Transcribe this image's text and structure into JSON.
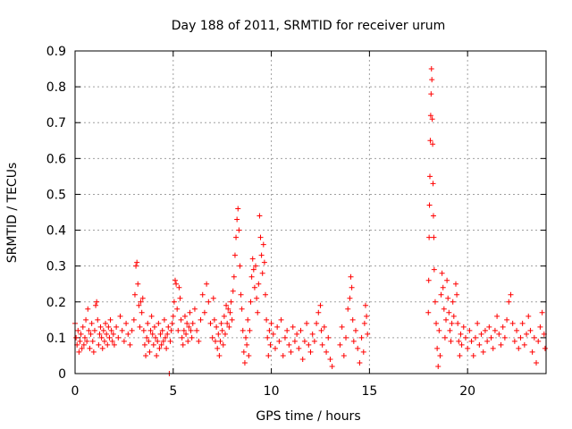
{
  "chart_data": {
    "type": "scatter",
    "title": "Day 188 of 2011, SRMTID for receiver urum",
    "xlabel": "GPS time / hours",
    "ylabel": "SRMTID / TECUs",
    "xlim": [
      0,
      24
    ],
    "ylim": [
      0,
      0.9
    ],
    "xticks": [
      0,
      5,
      10,
      15,
      20
    ],
    "xtick_labels": [
      "0",
      "5",
      "10",
      "15",
      "20"
    ],
    "yticks": [
      0,
      0.1,
      0.2,
      0.3,
      0.4,
      0.5,
      0.6,
      0.7,
      0.8,
      0.9
    ],
    "ytick_labels": [
      "0",
      "0.1",
      "0.2",
      "0.3",
      "0.4",
      "0.5",
      "0.6",
      "0.7",
      "0.8",
      "0.9"
    ],
    "grid": true,
    "marker": "+",
    "color": "#ff0000",
    "series": [
      {
        "name": "SRMTID",
        "points": [
          [
            0.0,
            0.14
          ],
          [
            0.05,
            0.1
          ],
          [
            0.1,
            0.08
          ],
          [
            0.15,
            0.12
          ],
          [
            0.2,
            0.06
          ],
          [
            0.25,
            0.09
          ],
          [
            0.3,
            0.11
          ],
          [
            0.35,
            0.07
          ],
          [
            0.4,
            0.13
          ],
          [
            0.45,
            0.08
          ],
          [
            0.5,
            0.1
          ],
          [
            0.55,
            0.15
          ],
          [
            0.6,
            0.09
          ],
          [
            0.65,
            0.18
          ],
          [
            0.7,
            0.12
          ],
          [
            0.75,
            0.07
          ],
          [
            0.8,
            0.11
          ],
          [
            0.85,
            0.14
          ],
          [
            0.9,
            0.09
          ],
          [
            0.95,
            0.06
          ],
          [
            1.0,
            0.12
          ],
          [
            1.05,
            0.19
          ],
          [
            1.1,
            0.2
          ],
          [
            1.15,
            0.15
          ],
          [
            1.2,
            0.08
          ],
          [
            1.25,
            0.11
          ],
          [
            1.3,
            0.13
          ],
          [
            1.35,
            0.1
          ],
          [
            1.4,
            0.07
          ],
          [
            1.45,
            0.12
          ],
          [
            1.5,
            0.09
          ],
          [
            1.55,
            0.14
          ],
          [
            1.6,
            0.11
          ],
          [
            1.65,
            0.08
          ],
          [
            1.7,
            0.13
          ],
          [
            1.75,
            0.1
          ],
          [
            1.8,
            0.15
          ],
          [
            1.85,
            0.12
          ],
          [
            1.9,
            0.09
          ],
          [
            1.95,
            0.11
          ],
          [
            2.0,
            0.08
          ],
          [
            2.1,
            0.13
          ],
          [
            2.2,
            0.1
          ],
          [
            2.3,
            0.16
          ],
          [
            2.4,
            0.12
          ],
          [
            2.5,
            0.09
          ],
          [
            2.6,
            0.14
          ],
          [
            2.7,
            0.11
          ],
          [
            2.8,
            0.08
          ],
          [
            2.9,
            0.12
          ],
          [
            3.0,
            0.15
          ],
          [
            3.05,
            0.22
          ],
          [
            3.1,
            0.3
          ],
          [
            3.15,
            0.31
          ],
          [
            3.2,
            0.25
          ],
          [
            3.25,
            0.19
          ],
          [
            3.3,
            0.13
          ],
          [
            3.35,
            0.2
          ],
          [
            3.4,
            0.17
          ],
          [
            3.45,
            0.21
          ],
          [
            3.5,
            0.12
          ],
          [
            3.55,
            0.08
          ],
          [
            3.6,
            0.05
          ],
          [
            3.65,
            0.1
          ],
          [
            3.7,
            0.14
          ],
          [
            3.75,
            0.09
          ],
          [
            3.8,
            0.06
          ],
          [
            3.85,
            0.12
          ],
          [
            3.9,
            0.16
          ],
          [
            3.95,
            0.11
          ],
          [
            4.0,
            0.08
          ],
          [
            4.05,
            0.13
          ],
          [
            4.1,
            0.1
          ],
          [
            4.15,
            0.05
          ],
          [
            4.2,
            0.09
          ],
          [
            4.25,
            0.14
          ],
          [
            4.3,
            0.07
          ],
          [
            4.35,
            0.11
          ],
          [
            4.4,
            0.08
          ],
          [
            4.45,
            0.12
          ],
          [
            4.5,
            0.09
          ],
          [
            4.55,
            0.15
          ],
          [
            4.6,
            0.1
          ],
          [
            4.65,
            0.07
          ],
          [
            4.7,
            0.11
          ],
          [
            4.75,
            0.13
          ],
          [
            4.8,
            0.0
          ],
          [
            4.85,
            0.09
          ],
          [
            4.9,
            0.12
          ],
          [
            4.95,
            0.14
          ],
          [
            5.0,
            0.16
          ],
          [
            5.05,
            0.2
          ],
          [
            5.1,
            0.26
          ],
          [
            5.15,
            0.25
          ],
          [
            5.2,
            0.18
          ],
          [
            5.25,
            0.12
          ],
          [
            5.3,
            0.24
          ],
          [
            5.35,
            0.21
          ],
          [
            5.4,
            0.15
          ],
          [
            5.45,
            0.1
          ],
          [
            5.5,
            0.08
          ],
          [
            5.55,
            0.12
          ],
          [
            5.6,
            0.16
          ],
          [
            5.65,
            0.11
          ],
          [
            5.7,
            0.14
          ],
          [
            5.75,
            0.09
          ],
          [
            5.8,
            0.13
          ],
          [
            5.85,
            0.17
          ],
          [
            5.9,
            0.12
          ],
          [
            5.95,
            0.1
          ],
          [
            6.0,
            0.14
          ],
          [
            6.1,
            0.18
          ],
          [
            6.2,
            0.12
          ],
          [
            6.3,
            0.09
          ],
          [
            6.4,
            0.15
          ],
          [
            6.5,
            0.22
          ],
          [
            6.6,
            0.17
          ],
          [
            6.7,
            0.25
          ],
          [
            6.8,
            0.2
          ],
          [
            6.9,
            0.14
          ],
          [
            7.0,
            0.1
          ],
          [
            7.05,
            0.21
          ],
          [
            7.1,
            0.15
          ],
          [
            7.15,
            0.09
          ],
          [
            7.2,
            0.13
          ],
          [
            7.25,
            0.07
          ],
          [
            7.3,
            0.11
          ],
          [
            7.35,
            0.05
          ],
          [
            7.4,
            0.09
          ],
          [
            7.45,
            0.14
          ],
          [
            7.5,
            0.12
          ],
          [
            7.55,
            0.08
          ],
          [
            7.6,
            0.16
          ],
          [
            7.65,
            0.11
          ],
          [
            7.7,
            0.19
          ],
          [
            7.75,
            0.14
          ],
          [
            7.8,
            0.18
          ],
          [
            7.85,
            0.13
          ],
          [
            7.9,
            0.17
          ],
          [
            7.95,
            0.2
          ],
          [
            8.0,
            0.15
          ],
          [
            8.05,
            0.23
          ],
          [
            8.1,
            0.27
          ],
          [
            8.15,
            0.33
          ],
          [
            8.2,
            0.38
          ],
          [
            8.25,
            0.43
          ],
          [
            8.3,
            0.46
          ],
          [
            8.35,
            0.4
          ],
          [
            8.4,
            0.3
          ],
          [
            8.45,
            0.22
          ],
          [
            8.5,
            0.18
          ],
          [
            8.55,
            0.12
          ],
          [
            8.6,
            0.06
          ],
          [
            8.65,
            0.03
          ],
          [
            8.7,
            0.1
          ],
          [
            8.75,
            0.08
          ],
          [
            8.8,
            0.15
          ],
          [
            8.85,
            0.05
          ],
          [
            8.9,
            0.12
          ],
          [
            8.95,
            0.2
          ],
          [
            9.0,
            0.27
          ],
          [
            9.05,
            0.32
          ],
          [
            9.1,
            0.29
          ],
          [
            9.15,
            0.24
          ],
          [
            9.2,
            0.3
          ],
          [
            9.25,
            0.21
          ],
          [
            9.3,
            0.17
          ],
          [
            9.35,
            0.25
          ],
          [
            9.4,
            0.44
          ],
          [
            9.45,
            0.38
          ],
          [
            9.5,
            0.33
          ],
          [
            9.55,
            0.28
          ],
          [
            9.6,
            0.36
          ],
          [
            9.65,
            0.31
          ],
          [
            9.7,
            0.22
          ],
          [
            9.75,
            0.15
          ],
          [
            9.8,
            0.1
          ],
          [
            9.85,
            0.05
          ],
          [
            9.9,
            0.12
          ],
          [
            9.95,
            0.08
          ],
          [
            10.0,
            0.14
          ],
          [
            10.1,
            0.11
          ],
          [
            10.2,
            0.07
          ],
          [
            10.3,
            0.13
          ],
          [
            10.4,
            0.09
          ],
          [
            10.5,
            0.15
          ],
          [
            10.6,
            0.05
          ],
          [
            10.7,
            0.1
          ],
          [
            10.8,
            0.12
          ],
          [
            10.9,
            0.08
          ],
          [
            11.0,
            0.06
          ],
          [
            11.1,
            0.13
          ],
          [
            11.2,
            0.09
          ],
          [
            11.3,
            0.11
          ],
          [
            11.4,
            0.07
          ],
          [
            11.5,
            0.12
          ],
          [
            11.6,
            0.04
          ],
          [
            11.7,
            0.09
          ],
          [
            11.8,
            0.14
          ],
          [
            11.9,
            0.08
          ],
          [
            12.0,
            0.06
          ],
          [
            12.1,
            0.11
          ],
          [
            12.2,
            0.09
          ],
          [
            12.3,
            0.14
          ],
          [
            12.4,
            0.17
          ],
          [
            12.5,
            0.19
          ],
          [
            12.55,
            0.12
          ],
          [
            12.6,
            0.08
          ],
          [
            12.7,
            0.13
          ],
          [
            12.8,
            0.06
          ],
          [
            12.9,
            0.1
          ],
          [
            13.0,
            0.04
          ],
          [
            13.1,
            0.02
          ],
          [
            13.5,
            0.08
          ],
          [
            13.6,
            0.13
          ],
          [
            13.7,
            0.05
          ],
          [
            13.8,
            0.1
          ],
          [
            13.9,
            0.18
          ],
          [
            14.0,
            0.21
          ],
          [
            14.05,
            0.27
          ],
          [
            14.1,
            0.24
          ],
          [
            14.15,
            0.15
          ],
          [
            14.2,
            0.09
          ],
          [
            14.3,
            0.12
          ],
          [
            14.4,
            0.07
          ],
          [
            14.5,
            0.03
          ],
          [
            14.6,
            0.1
          ],
          [
            14.7,
            0.06
          ],
          [
            14.75,
            0.14
          ],
          [
            14.8,
            0.19
          ],
          [
            14.85,
            0.16
          ],
          [
            14.9,
            0.11
          ],
          [
            18.0,
            0.17
          ],
          [
            18.02,
            0.26
          ],
          [
            18.04,
            0.38
          ],
          [
            18.06,
            0.47
          ],
          [
            18.08,
            0.55
          ],
          [
            18.1,
            0.65
          ],
          [
            18.12,
            0.72
          ],
          [
            18.14,
            0.78
          ],
          [
            18.16,
            0.85
          ],
          [
            18.18,
            0.82
          ],
          [
            18.2,
            0.71
          ],
          [
            18.22,
            0.64
          ],
          [
            18.24,
            0.53
          ],
          [
            18.26,
            0.44
          ],
          [
            18.28,
            0.38
          ],
          [
            18.3,
            0.29
          ],
          [
            18.35,
            0.2
          ],
          [
            18.4,
            0.14
          ],
          [
            18.45,
            0.07
          ],
          [
            18.5,
            0.02
          ],
          [
            18.55,
            0.12
          ],
          [
            18.6,
            0.05
          ],
          [
            18.65,
            0.22
          ],
          [
            18.7,
            0.28
          ],
          [
            18.75,
            0.24
          ],
          [
            18.8,
            0.18
          ],
          [
            18.85,
            0.1
          ],
          [
            18.9,
            0.15
          ],
          [
            18.95,
            0.26
          ],
          [
            19.0,
            0.21
          ],
          [
            19.05,
            0.17
          ],
          [
            19.1,
            0.12
          ],
          [
            19.15,
            0.09
          ],
          [
            19.2,
            0.14
          ],
          [
            19.25,
            0.2
          ],
          [
            19.3,
            0.16
          ],
          [
            19.4,
            0.25
          ],
          [
            19.45,
            0.22
          ],
          [
            19.5,
            0.14
          ],
          [
            19.55,
            0.09
          ],
          [
            19.6,
            0.05
          ],
          [
            19.65,
            0.11
          ],
          [
            19.7,
            0.08
          ],
          [
            19.8,
            0.13
          ],
          [
            19.9,
            0.1
          ],
          [
            20.0,
            0.07
          ],
          [
            20.1,
            0.12
          ],
          [
            20.2,
            0.09
          ],
          [
            20.3,
            0.05
          ],
          [
            20.4,
            0.1
          ],
          [
            20.5,
            0.14
          ],
          [
            20.6,
            0.08
          ],
          [
            20.7,
            0.11
          ],
          [
            20.8,
            0.06
          ],
          [
            20.9,
            0.12
          ],
          [
            21.0,
            0.09
          ],
          [
            21.1,
            0.13
          ],
          [
            21.2,
            0.1
          ],
          [
            21.3,
            0.07
          ],
          [
            21.4,
            0.12
          ],
          [
            21.5,
            0.16
          ],
          [
            21.6,
            0.11
          ],
          [
            21.7,
            0.08
          ],
          [
            21.8,
            0.13
          ],
          [
            21.9,
            0.1
          ],
          [
            22.0,
            0.15
          ],
          [
            22.1,
            0.2
          ],
          [
            22.2,
            0.22
          ],
          [
            22.3,
            0.14
          ],
          [
            22.4,
            0.09
          ],
          [
            22.5,
            0.12
          ],
          [
            22.6,
            0.07
          ],
          [
            22.7,
            0.1
          ],
          [
            22.8,
            0.14
          ],
          [
            22.9,
            0.08
          ],
          [
            23.0,
            0.11
          ],
          [
            23.1,
            0.16
          ],
          [
            23.2,
            0.12
          ],
          [
            23.3,
            0.06
          ],
          [
            23.4,
            0.1
          ],
          [
            23.5,
            0.03
          ],
          [
            23.6,
            0.09
          ],
          [
            23.7,
            0.13
          ],
          [
            23.8,
            0.17
          ],
          [
            23.9,
            0.11
          ],
          [
            23.95,
            0.07
          ]
        ]
      }
    ]
  }
}
